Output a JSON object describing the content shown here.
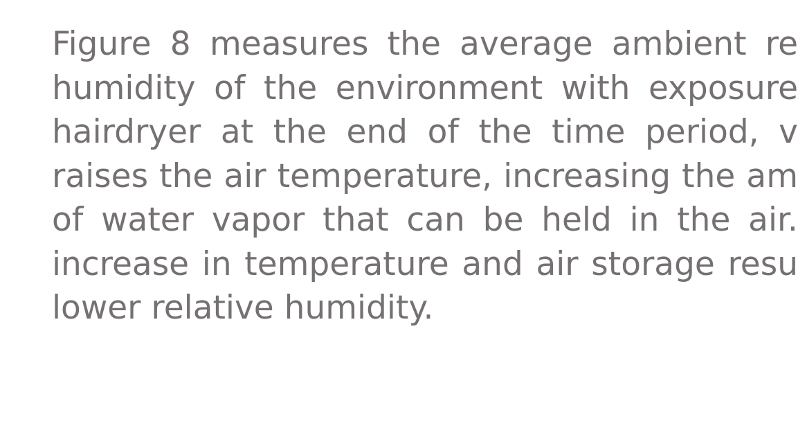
{
  "paragraph": {
    "lines": [
      "Figure 8 measures the average ambient re",
      "humidity of the environment with exposure",
      "hairdryer at the end of the time period, v",
      "raises the air temperature, increasing the am",
      "of water vapor that can be held in the air.",
      "increase in temperature and air storage resu",
      "lower relative humidity."
    ]
  }
}
